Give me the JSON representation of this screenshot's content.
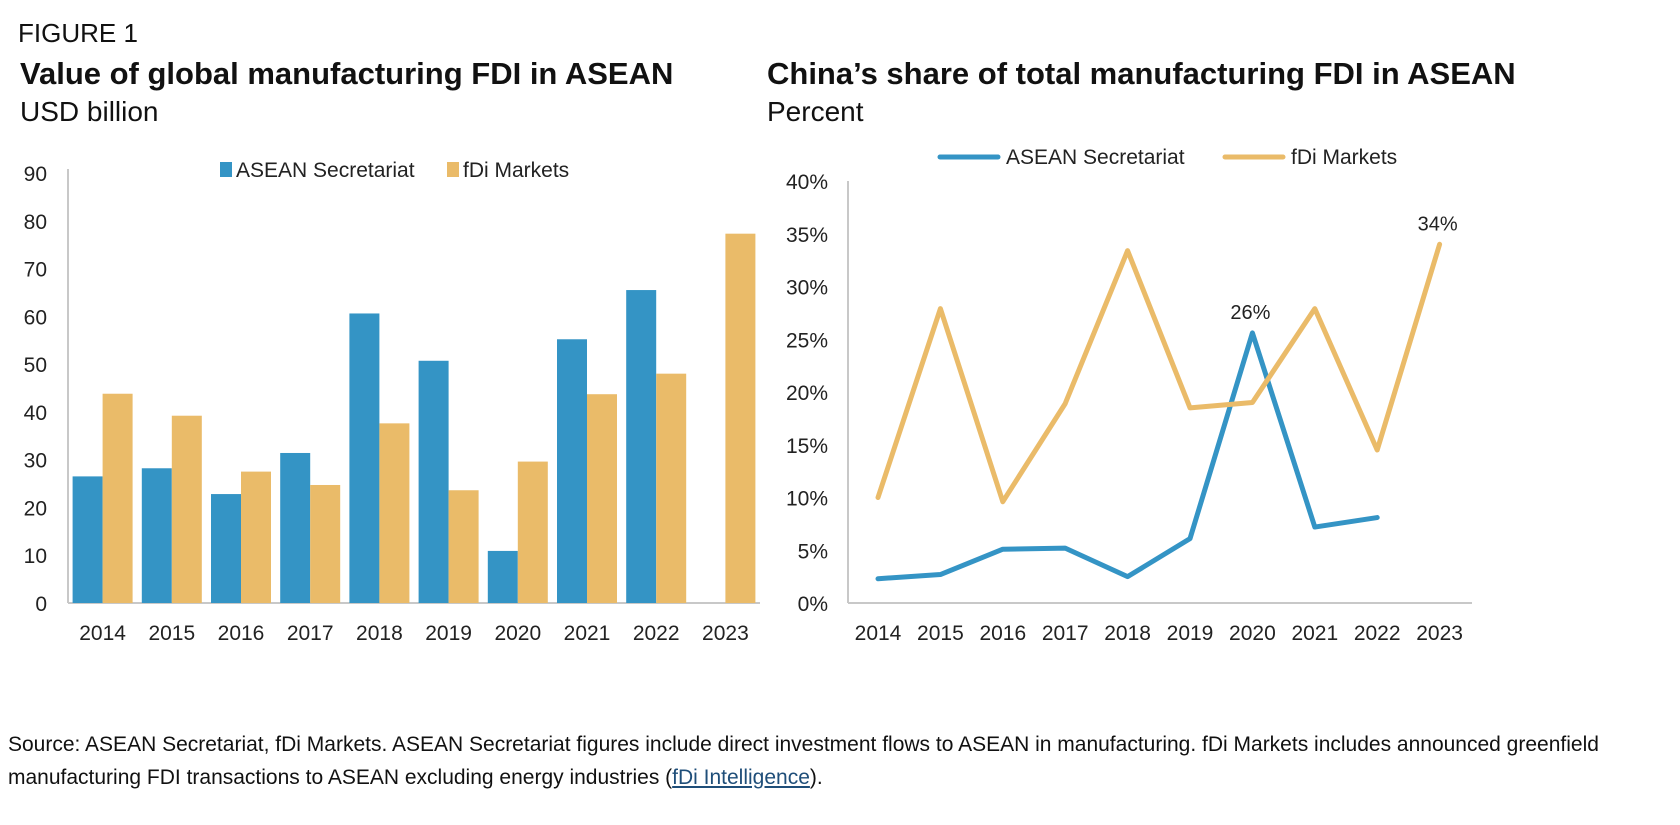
{
  "figure_label": "FIGURE 1",
  "colors": {
    "asean": "#3494c5",
    "fdi": "#eabb69",
    "axis": "#c8c8c8"
  },
  "chart_data": [
    {
      "type": "bar",
      "title": "Value of global manufacturing FDI in ASEAN",
      "subtitle": "USD billion",
      "categories": [
        "2014",
        "2015",
        "2016",
        "2017",
        "2018",
        "2019",
        "2020",
        "2021",
        "2022",
        "2023"
      ],
      "series": [
        {
          "name": "ASEAN Secretariat",
          "values": [
            26.5,
            28.2,
            22.8,
            31.4,
            60.6,
            50.7,
            10.9,
            55.2,
            65.5,
            null
          ]
        },
        {
          "name": "fDi Markets",
          "values": [
            43.8,
            39.2,
            27.5,
            24.7,
            37.6,
            23.6,
            29.6,
            43.7,
            48.0,
            77.3
          ]
        }
      ],
      "ylim": [
        0,
        90
      ],
      "yticks": [
        "0",
        "10",
        "20",
        "30",
        "40",
        "50",
        "60",
        "70",
        "80",
        "90"
      ],
      "legend": "top-center",
      "grid": false
    },
    {
      "type": "line",
      "title": "China’s share of total manufacturing FDI in ASEAN",
      "subtitle": "Percent",
      "categories": [
        "2014",
        "2015",
        "2016",
        "2017",
        "2018",
        "2019",
        "2020",
        "2021",
        "2022",
        "2023"
      ],
      "series": [
        {
          "name": "ASEAN Secretariat",
          "values": [
            2.3,
            2.7,
            5.1,
            5.2,
            2.5,
            6.1,
            25.6,
            7.2,
            8.1,
            null
          ]
        },
        {
          "name": "fDi Markets",
          "values": [
            10.0,
            27.9,
            9.6,
            18.9,
            33.4,
            18.5,
            19.0,
            27.9,
            14.5,
            34.0
          ]
        }
      ],
      "annotations": [
        {
          "series": "ASEAN Secretariat",
          "category": "2020",
          "text": "26%"
        },
        {
          "series": "fDi Markets",
          "category": "2023",
          "text": "34%"
        }
      ],
      "ylim": [
        0,
        40
      ],
      "yticks": [
        "0%",
        "5%",
        "10%",
        "15%",
        "20%",
        "25%",
        "30%",
        "35%",
        "40%"
      ],
      "legend": "top-center",
      "grid": false
    }
  ],
  "footer": {
    "text": "Source: ASEAN Secretariat, fDi Markets. ASEAN Secretariat figures include direct investment flows to ASEAN in manufacturing. fDi Markets includes announced greenfield manufacturing FDI transactions to ASEAN excluding energy industries (",
    "link": "fDi Intelligence",
    "end": ")."
  }
}
